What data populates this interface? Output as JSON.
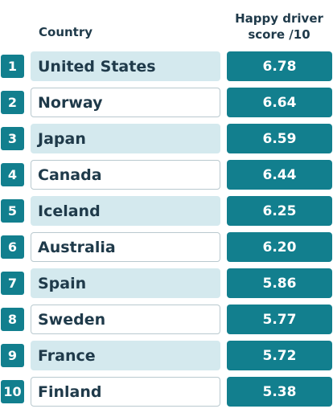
{
  "header": {
    "country_label": "Country",
    "score_label_line1": "Happy driver",
    "score_label_line2": "score /10"
  },
  "colors": {
    "accent": "#127f8e",
    "row_shade": "#d4e9ee",
    "text": "#1f3a4a"
  },
  "chart_data": {
    "type": "table",
    "columns": [
      "Country",
      "Happy driver score /10"
    ],
    "rows": [
      {
        "rank": "1",
        "country": "United States",
        "score": "6.78"
      },
      {
        "rank": "2",
        "country": "Norway",
        "score": "6.64"
      },
      {
        "rank": "3",
        "country": "Japan",
        "score": "6.59"
      },
      {
        "rank": "4",
        "country": "Canada",
        "score": "6.44"
      },
      {
        "rank": "5",
        "country": "Iceland",
        "score": "6.25"
      },
      {
        "rank": "6",
        "country": "Australia",
        "score": "6.20"
      },
      {
        "rank": "7",
        "country": "Spain",
        "score": "5.86"
      },
      {
        "rank": "8",
        "country": "Sweden",
        "score": "5.77"
      },
      {
        "rank": "9",
        "country": "France",
        "score": "5.72"
      },
      {
        "rank": "10",
        "country": "Finland",
        "score": "5.38"
      }
    ]
  }
}
